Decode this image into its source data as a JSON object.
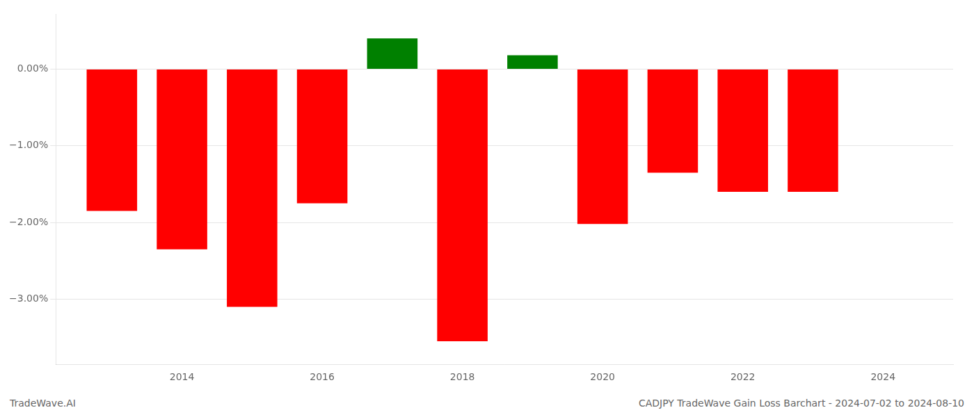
{
  "chart_data": {
    "type": "bar",
    "x": [
      2013,
      2014,
      2015,
      2016,
      2017,
      2018,
      2019,
      2020,
      2021,
      2022,
      2023
    ],
    "values": [
      -1.85,
      -2.35,
      -3.1,
      -1.75,
      0.4,
      -3.55,
      0.18,
      -2.02,
      -1.35,
      -1.6,
      -1.6
    ],
    "colors": [
      "#ff0000",
      "#ff0000",
      "#ff0000",
      "#ff0000",
      "#008000",
      "#ff0000",
      "#008000",
      "#ff0000",
      "#ff0000",
      "#ff0000",
      "#ff0000"
    ],
    "xlim": [
      2012.2,
      2025.0
    ],
    "xticks": [
      2014,
      2016,
      2018,
      2020,
      2022,
      2024
    ],
    "ylim": [
      -3.85,
      0.72
    ],
    "yticks": [
      {
        "value": 0.0,
        "label": "0.00%"
      },
      {
        "value": -1.0,
        "label": "−1.00%"
      },
      {
        "value": -2.0,
        "label": "−2.00%"
      },
      {
        "value": -3.0,
        "label": "−3.00%"
      }
    ],
    "grid": true,
    "annotations": [
      "TradeWave.AI",
      "CADJPY TradeWave Gain Loss Barchart - 2024-07-02 to 2024-08-10"
    ]
  }
}
